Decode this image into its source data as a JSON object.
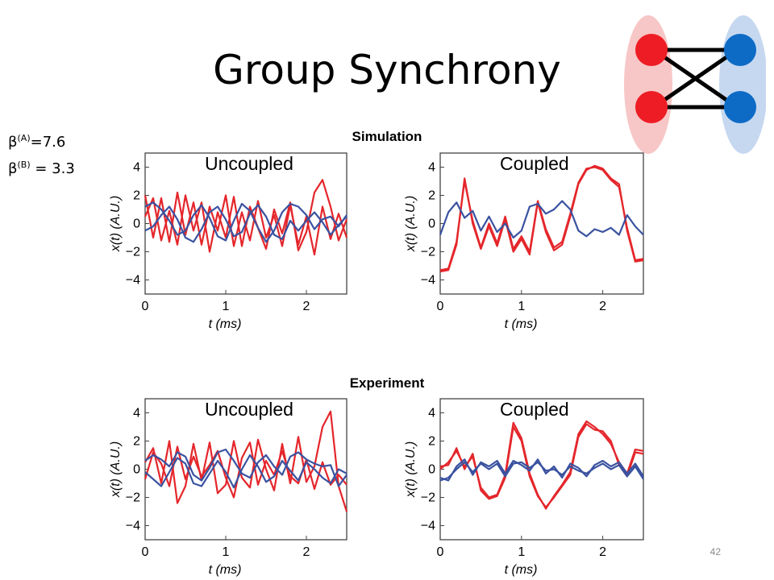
{
  "slide": {
    "title": "Group Synchrony",
    "params": [
      {
        "symbol": "β",
        "sup": "(A)",
        "text": "=7.6"
      },
      {
        "symbol": "β",
        "sup": "(B)",
        "text": " = 3.3"
      }
    ],
    "sections": {
      "simulation": "Simulation",
      "experiment": "Experiment"
    },
    "slide_number": "42",
    "colors": {
      "red": "#e4262b",
      "blue": "#3a52a0",
      "node_red": "#ee1c24",
      "node_blue": "#0d6bc6",
      "group_red": "#f7c6c6",
      "group_blue": "#c6d8f0"
    }
  },
  "chart_data": [
    {
      "type": "line",
      "section": "Simulation",
      "title": "Uncoupled",
      "xlabel": "t (ms)",
      "ylabel": "x(t) (A.U.)",
      "xlim": [
        0,
        2.5
      ],
      "ylim": [
        -5,
        5
      ],
      "xticks": [
        "0",
        "1",
        "2"
      ],
      "yticks": [
        "4",
        "2",
        "0",
        "−2",
        "−4"
      ],
      "x": [
        0,
        0.1,
        0.2,
        0.3,
        0.4,
        0.5,
        0.6,
        0.7,
        0.8,
        0.9,
        1.0,
        1.1,
        1.2,
        1.3,
        1.4,
        1.5,
        1.6,
        1.7,
        1.8,
        1.9,
        2.0,
        2.1,
        2.2,
        2.3,
        2.4,
        2.5
      ],
      "series": [
        {
          "color": "red",
          "values": [
            2.0,
            -1.0,
            1.8,
            -1.3,
            2.2,
            -0.8,
            1.5,
            -1.5,
            1.2,
            -0.5,
            2.0,
            -1.6,
            0.8,
            -1.2,
            1.6,
            -1.0,
            0.6,
            -1.6,
            1.3,
            -1.5,
            0.5,
            -2.2,
            1.2,
            -1.1,
            0.7,
            -1.0
          ]
        },
        {
          "color": "red",
          "values": [
            0.5,
            1.8,
            -1.2,
            0.9,
            -1.5,
            2.0,
            -0.5,
            1.5,
            -2.0,
            0.8,
            -1.0,
            1.9,
            -1.6,
            1.2,
            -0.3,
            -1.8,
            1.0,
            -0.7,
            1.5,
            -1.9,
            -0.6,
            2.2,
            3.1,
            1.2,
            -1.2,
            0.3
          ]
        },
        {
          "color": "blue",
          "values": [
            1.2,
            1.5,
            1.0,
            0.2,
            -0.8,
            -0.5,
            0.6,
            1.3,
            0.4,
            -0.9,
            -1.2,
            0.2,
            1.4,
            0.9,
            -0.3,
            -1.3,
            -0.5,
            0.8,
            1.4,
            1.2,
            0.6,
            -0.4,
            0.3,
            0.5,
            -0.2,
            0.6
          ]
        },
        {
          "color": "blue",
          "values": [
            -0.5,
            -0.2,
            0.6,
            1.2,
            0.3,
            -1.0,
            -1.3,
            -0.4,
            0.8,
            1.2,
            0.3,
            -0.9,
            -0.6,
            0.7,
            1.3,
            0.5,
            -0.8,
            -1.1,
            0.2,
            -0.5,
            0.2,
            0.8,
            0.1,
            -0.8,
            -0.1,
            0.5
          ]
        }
      ]
    },
    {
      "type": "line",
      "section": "Simulation",
      "title": "Coupled",
      "xlabel": "t (ms)",
      "ylabel": "x(t) (A.U.)",
      "xlim": [
        0,
        2.5
      ],
      "ylim": [
        -5,
        5
      ],
      "xticks": [
        "0",
        "1",
        "2"
      ],
      "yticks": [
        "4",
        "2",
        "0",
        "−2",
        "−4"
      ],
      "x": [
        0,
        0.1,
        0.2,
        0.3,
        0.4,
        0.5,
        0.6,
        0.7,
        0.8,
        0.9,
        1.0,
        1.1,
        1.2,
        1.3,
        1.4,
        1.5,
        1.6,
        1.7,
        1.8,
        1.9,
        2.0,
        2.1,
        2.2,
        2.3,
        2.4,
        2.5
      ],
      "series": [
        {
          "color": "red",
          "values": [
            -3.4,
            -3.3,
            -1.5,
            3.2,
            0.0,
            -1.8,
            -0.2,
            -1.6,
            0.3,
            -2.0,
            -1.1,
            -2.2,
            1.5,
            -0.6,
            -1.9,
            -1.5,
            0.5,
            2.8,
            3.8,
            4.1,
            3.9,
            3.2,
            2.8,
            -0.5,
            -2.7,
            -2.6
          ]
        },
        {
          "color": "red",
          "values": [
            -3.3,
            -3.2,
            -1.3,
            3.0,
            0.2,
            -1.7,
            0.0,
            -1.4,
            0.5,
            -1.8,
            -0.9,
            -2.0,
            1.6,
            -0.4,
            -1.7,
            -1.3,
            0.7,
            2.9,
            3.9,
            4.0,
            3.8,
            3.1,
            2.6,
            -0.3,
            -2.6,
            -2.5
          ]
        },
        {
          "color": "blue",
          "values": [
            -0.8,
            0.8,
            1.5,
            0.4,
            0.9,
            -0.5,
            0.5,
            -0.6,
            0.0,
            -1.0,
            -0.5,
            1.2,
            1.4,
            0.7,
            1.0,
            1.6,
            1.0,
            -0.5,
            -0.9,
            -0.4,
            -0.6,
            -0.3,
            -0.8,
            0.6,
            -0.2,
            -0.8
          ]
        }
      ]
    },
    {
      "type": "line",
      "section": "Experiment",
      "title": "Uncoupled",
      "xlabel": "t (ms)",
      "ylabel": "x(t) (A.U.)",
      "xlim": [
        0,
        2.5
      ],
      "ylim": [
        -5,
        5
      ],
      "xticks": [
        "0",
        "1",
        "2"
      ],
      "yticks": [
        "4",
        "2",
        "0",
        "−2",
        "−4"
      ],
      "x": [
        0,
        0.1,
        0.2,
        0.3,
        0.4,
        0.5,
        0.6,
        0.7,
        0.8,
        0.9,
        1.0,
        1.1,
        1.2,
        1.3,
        1.4,
        1.5,
        1.6,
        1.7,
        1.8,
        1.9,
        2.0,
        2.1,
        2.2,
        2.3,
        2.4,
        2.5
      ],
      "series": [
        {
          "color": "red",
          "values": [
            0.5,
            1.5,
            -1.0,
            2.0,
            -2.4,
            -1.2,
            1.8,
            -0.8,
            1.9,
            -1.7,
            -1.1,
            2.0,
            -0.6,
            -1.3,
            2.1,
            0.0,
            -1.5,
            1.8,
            -1.0,
            2.3,
            -0.9,
            0.2,
            3.0,
            4.1,
            -1.2,
            -3.0
          ]
        },
        {
          "color": "red",
          "values": [
            -0.7,
            1.2,
            0.4,
            -1.2,
            1.6,
            -0.7,
            0.9,
            -0.5,
            0.3,
            1.3,
            -0.6,
            -2.0,
            0.8,
            1.9,
            -1.1,
            0.6,
            -0.4,
            1.3,
            -0.5,
            -1.0,
            0.7,
            -1.4,
            0.5,
            -1.1,
            -0.4,
            -1.1
          ]
        },
        {
          "color": "blue",
          "values": [
            0.6,
            1.0,
            0.7,
            0.2,
            1.2,
            0.9,
            -0.4,
            -0.8,
            0.1,
            1.2,
            1.4,
            0.6,
            -0.3,
            -0.6,
            0.5,
            1.0,
            0.2,
            -0.4,
            0.9,
            1.2,
            0.7,
            0.4,
            0.2,
            0.3,
            -1.2,
            -0.4
          ]
        },
        {
          "color": "blue",
          "values": [
            -0.2,
            -0.7,
            -1.2,
            -0.2,
            0.8,
            0.4,
            -1.0,
            -1.2,
            -0.3,
            0.6,
            -0.2,
            -1.3,
            0.0,
            1.0,
            0.2,
            -0.9,
            -0.5,
            0.6,
            -0.1,
            -0.8,
            0.5,
            0.0,
            -0.6,
            -1.0,
            0.0,
            -0.3
          ]
        }
      ]
    },
    {
      "type": "line",
      "section": "Experiment",
      "title": "Coupled",
      "xlabel": "t (ms)",
      "ylabel": "x(t) (A.U.)",
      "xlim": [
        0,
        2.5
      ],
      "ylim": [
        -5,
        5
      ],
      "xticks": [
        "0",
        "1",
        "2"
      ],
      "yticks": [
        "4",
        "2",
        "0",
        "−2",
        "−4"
      ],
      "x": [
        0,
        0.1,
        0.2,
        0.3,
        0.4,
        0.5,
        0.6,
        0.7,
        0.8,
        0.9,
        1.0,
        1.1,
        1.2,
        1.3,
        1.4,
        1.5,
        1.6,
        1.7,
        1.8,
        1.9,
        2.0,
        2.1,
        2.2,
        2.3,
        2.4,
        2.5
      ],
      "series": [
        {
          "color": "red",
          "values": [
            0.2,
            0.3,
            1.5,
            0.0,
            1.1,
            -1.5,
            -2.1,
            -1.9,
            -0.6,
            3.0,
            2.0,
            -0.5,
            -1.9,
            -2.7,
            -2.0,
            -1.2,
            -0.4,
            2.3,
            3.2,
            2.8,
            2.7,
            2.0,
            0.3,
            -0.5,
            1.2,
            1.1
          ]
        },
        {
          "color": "red",
          "values": [
            0.0,
            0.5,
            1.3,
            0.2,
            0.9,
            -1.3,
            -2.0,
            -1.8,
            -0.4,
            3.3,
            2.2,
            -0.3,
            -1.8,
            -2.8,
            -1.9,
            -1.1,
            -0.2,
            2.5,
            3.4,
            3.0,
            2.5,
            1.8,
            0.5,
            -0.3,
            1.4,
            1.3
          ]
        },
        {
          "color": "blue",
          "values": [
            -0.6,
            -0.8,
            0.2,
            0.7,
            -0.4,
            0.5,
            0.2,
            0.6,
            -0.3,
            0.6,
            0.3,
            -0.1,
            0.7,
            -0.3,
            0.2,
            -0.6,
            0.4,
            0.1,
            -0.5,
            0.3,
            0.6,
            0.2,
            0.5,
            -0.3,
            0.4,
            -0.5
          ]
        },
        {
          "color": "blue",
          "values": [
            -0.8,
            -0.6,
            0.0,
            0.5,
            -0.2,
            0.4,
            0.0,
            0.4,
            -0.5,
            0.4,
            0.5,
            0.1,
            0.5,
            -0.1,
            0.0,
            -0.4,
            0.2,
            -0.1,
            -0.3,
            0.1,
            0.4,
            0.0,
            0.3,
            -0.5,
            0.2,
            -0.7
          ]
        }
      ]
    }
  ]
}
